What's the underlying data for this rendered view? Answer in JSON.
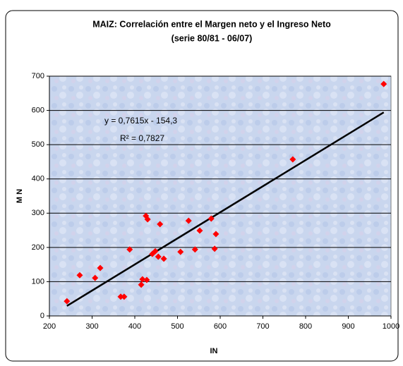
{
  "chart_data": {
    "type": "scatter",
    "title": "MAIZ: Correlación entre el Margen neto y el Ingreso Neto",
    "subtitle": "(serie 80/81 - 06/07)",
    "x_label": "IN",
    "y_label": "M N",
    "annotations": [
      "y = 0,7615x - 154,3",
      "R² = 0,7827"
    ],
    "trendline": {
      "slope": 0.7615,
      "intercept": -154.3
    },
    "series": [
      {
        "name": "M N",
        "color": "#ff0000",
        "x": [
          241,
          271,
          307,
          319,
          388,
          367,
          375,
          415,
          418,
          428,
          426,
          430,
          441,
          448,
          459,
          455,
          468,
          507,
          526,
          541,
          552,
          579,
          587,
          590,
          770,
          983
        ],
        "values": [
          43,
          119,
          111,
          140,
          194,
          56,
          56,
          91,
          107,
          105,
          292,
          282,
          181,
          189,
          268,
          173,
          167,
          187,
          278,
          194,
          249,
          284,
          196,
          239,
          457,
          677
        ]
      }
    ],
    "xlim": [
      200,
      1000
    ],
    "xticks": [
      200,
      300,
      400,
      500,
      600,
      700,
      800,
      900,
      1000
    ],
    "ylim": [
      0,
      700
    ],
    "yticks": [
      0,
      100,
      200,
      300,
      400,
      500,
      600,
      700
    ],
    "grid": true
  }
}
